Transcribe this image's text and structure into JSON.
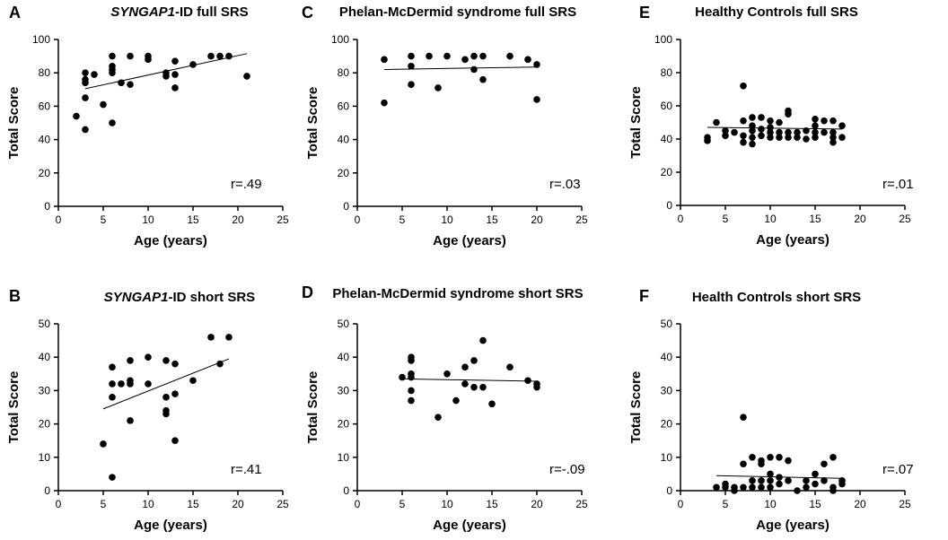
{
  "chart_data": [
    {
      "panel": "A",
      "type": "scatter",
      "title": "SYNGAP1-ID full SRS",
      "title_italic_prefix": "SYNGAP1",
      "title_rest": "-ID full SRS",
      "xlabel": "Age (years)",
      "ylabel": "Total Score",
      "xlim": [
        0,
        25
      ],
      "ylim": [
        0,
        100
      ],
      "xticks": [
        0,
        5,
        10,
        15,
        20,
        25
      ],
      "yticks": [
        0,
        20,
        40,
        60,
        80,
        100
      ],
      "points": [
        [
          2,
          54
        ],
        [
          3,
          46
        ],
        [
          3,
          65
        ],
        [
          3,
          74
        ],
        [
          3,
          76
        ],
        [
          3,
          80
        ],
        [
          4,
          79
        ],
        [
          5,
          61
        ],
        [
          6,
          50
        ],
        [
          6,
          80
        ],
        [
          6,
          82
        ],
        [
          6,
          84
        ],
        [
          6,
          90
        ],
        [
          7,
          74
        ],
        [
          8,
          73
        ],
        [
          8,
          90
        ],
        [
          10,
          88
        ],
        [
          10,
          90
        ],
        [
          12,
          78
        ],
        [
          12,
          80
        ],
        [
          13,
          71
        ],
        [
          13,
          79
        ],
        [
          13,
          87
        ],
        [
          15,
          85
        ],
        [
          17,
          90
        ],
        [
          18,
          90
        ],
        [
          19,
          90
        ],
        [
          21,
          78
        ]
      ],
      "trend": [
        [
          3,
          70.5
        ],
        [
          21,
          91.5
        ]
      ],
      "r_text": "r=.49"
    },
    {
      "panel": "B",
      "type": "scatter",
      "title": "SYNGAP1-ID short SRS",
      "title_italic_prefix": "SYNGAP1",
      "title_rest": "-ID short SRS",
      "xlabel": "Age (years)",
      "ylabel": "Total Score",
      "xlim": [
        0,
        25
      ],
      "ylim": [
        0,
        50
      ],
      "xticks": [
        0,
        5,
        10,
        15,
        20,
        25
      ],
      "yticks": [
        0,
        10,
        20,
        30,
        40,
        50
      ],
      "points": [
        [
          5,
          14
        ],
        [
          6,
          4
        ],
        [
          6,
          28
        ],
        [
          6,
          32
        ],
        [
          6,
          37
        ],
        [
          7,
          32
        ],
        [
          8,
          21
        ],
        [
          8,
          32
        ],
        [
          8,
          33
        ],
        [
          8,
          39
        ],
        [
          10,
          32
        ],
        [
          10,
          40
        ],
        [
          12,
          23
        ],
        [
          12,
          24
        ],
        [
          12,
          28
        ],
        [
          12,
          39
        ],
        [
          13,
          15
        ],
        [
          13,
          29
        ],
        [
          13,
          38
        ],
        [
          15,
          33
        ],
        [
          17,
          46
        ],
        [
          18,
          38
        ],
        [
          19,
          46
        ]
      ],
      "trend": [
        [
          5,
          24.5
        ],
        [
          19,
          39.5
        ]
      ],
      "r_text": "r=.41"
    },
    {
      "panel": "C",
      "type": "scatter",
      "title": "Phelan-McDermid syndrome full SRS",
      "xlabel": "Age (years)",
      "ylabel": "Total Score",
      "xlim": [
        0,
        25
      ],
      "ylim": [
        0,
        100
      ],
      "xticks": [
        0,
        5,
        10,
        15,
        20,
        25
      ],
      "yticks": [
        0,
        20,
        40,
        60,
        80,
        100
      ],
      "points": [
        [
          3,
          62
        ],
        [
          3,
          88
        ],
        [
          6,
          73
        ],
        [
          6,
          84
        ],
        [
          6,
          90
        ],
        [
          8,
          90
        ],
        [
          9,
          71
        ],
        [
          10,
          90
        ],
        [
          12,
          88
        ],
        [
          13,
          82
        ],
        [
          13,
          90
        ],
        [
          14,
          76
        ],
        [
          14,
          90
        ],
        [
          17,
          90
        ],
        [
          19,
          88
        ],
        [
          20,
          64
        ],
        [
          20,
          85
        ]
      ],
      "trend": [
        [
          3,
          82
        ],
        [
          20,
          83.5
        ]
      ],
      "r_text": "r=.03"
    },
    {
      "panel": "D",
      "type": "scatter",
      "title": "Phelan-McDermid syndrome short SRS",
      "xlabel": "Age (years)",
      "ylabel": "Total Score",
      "xlim": [
        0,
        25
      ],
      "ylim": [
        0,
        50
      ],
      "xticks": [
        0,
        5,
        10,
        15,
        20,
        25
      ],
      "yticks": [
        0,
        10,
        20,
        30,
        40,
        50
      ],
      "points": [
        [
          5,
          34
        ],
        [
          6,
          27
        ],
        [
          6,
          30
        ],
        [
          6,
          34
        ],
        [
          6,
          35
        ],
        [
          6,
          39
        ],
        [
          6,
          40
        ],
        [
          9,
          22
        ],
        [
          10,
          35
        ],
        [
          11,
          27
        ],
        [
          12,
          32
        ],
        [
          12,
          37
        ],
        [
          13,
          31
        ],
        [
          13,
          39
        ],
        [
          14,
          31
        ],
        [
          14,
          45
        ],
        [
          15,
          26
        ],
        [
          17,
          37
        ],
        [
          19,
          33
        ],
        [
          20,
          31
        ],
        [
          20,
          32
        ]
      ],
      "trend": [
        [
          5,
          33.5
        ],
        [
          20,
          32.8
        ]
      ],
      "r_text": "r=-.09"
    },
    {
      "panel": "E",
      "type": "scatter",
      "title": "Healthy Controls full SRS",
      "xlabel": "Age (years)",
      "ylabel": "Total Score",
      "xlim": [
        0,
        25
      ],
      "ylim": [
        0,
        100
      ],
      "xticks": [
        0,
        5,
        10,
        15,
        20,
        25
      ],
      "yticks": [
        0,
        20,
        40,
        60,
        80,
        100
      ],
      "points": [
        [
          3,
          39
        ],
        [
          3,
          41
        ],
        [
          4,
          50
        ],
        [
          5,
          42
        ],
        [
          5,
          45
        ],
        [
          6,
          44
        ],
        [
          7,
          38
        ],
        [
          7,
          42
        ],
        [
          7,
          51
        ],
        [
          7,
          72
        ],
        [
          8,
          37
        ],
        [
          8,
          41
        ],
        [
          8,
          45
        ],
        [
          8,
          48
        ],
        [
          8,
          53
        ],
        [
          9,
          42
        ],
        [
          9,
          46
        ],
        [
          9,
          53
        ],
        [
          10,
          41
        ],
        [
          10,
          44
        ],
        [
          10,
          47
        ],
        [
          10,
          51
        ],
        [
          11,
          41
        ],
        [
          11,
          44
        ],
        [
          11,
          50
        ],
        [
          12,
          41
        ],
        [
          12,
          44
        ],
        [
          12,
          55
        ],
        [
          12,
          57
        ],
        [
          13,
          41
        ],
        [
          13,
          44
        ],
        [
          14,
          40
        ],
        [
          14,
          45
        ],
        [
          15,
          41
        ],
        [
          15,
          44
        ],
        [
          15,
          48
        ],
        [
          15,
          52
        ],
        [
          16,
          44
        ],
        [
          16,
          51
        ],
        [
          17,
          38
        ],
        [
          17,
          41
        ],
        [
          17,
          44
        ],
        [
          17,
          51
        ],
        [
          18,
          41
        ],
        [
          18,
          48
        ]
      ],
      "trend": [
        [
          3,
          47
        ],
        [
          18,
          46
        ]
      ],
      "r_text": "r=.01"
    },
    {
      "panel": "F",
      "type": "scatter",
      "title": "Health Controls short SRS",
      "xlabel": "Age (years)",
      "ylabel": "Total Score",
      "xlim": [
        0,
        25
      ],
      "ylim": [
        0,
        50
      ],
      "xticks": [
        0,
        5,
        10,
        15,
        20,
        25
      ],
      "yticks": [
        0,
        10,
        20,
        30,
        40,
        50
      ],
      "points": [
        [
          4,
          1
        ],
        [
          5,
          2
        ],
        [
          5,
          1
        ],
        [
          6,
          1
        ],
        [
          6,
          0
        ],
        [
          7,
          22
        ],
        [
          7,
          1
        ],
        [
          7,
          8
        ],
        [
          8,
          1
        ],
        [
          8,
          3
        ],
        [
          8,
          10
        ],
        [
          9,
          3
        ],
        [
          9,
          1
        ],
        [
          9,
          9
        ],
        [
          9,
          8
        ],
        [
          10,
          1
        ],
        [
          10,
          3
        ],
        [
          10,
          5
        ],
        [
          10,
          10
        ],
        [
          11,
          2
        ],
        [
          11,
          4
        ],
        [
          11,
          10
        ],
        [
          12,
          3
        ],
        [
          12,
          9
        ],
        [
          13,
          0
        ],
        [
          14,
          1
        ],
        [
          14,
          3
        ],
        [
          15,
          2
        ],
        [
          15,
          5
        ],
        [
          16,
          3
        ],
        [
          16,
          8
        ],
        [
          17,
          0
        ],
        [
          17,
          1
        ],
        [
          17,
          10
        ],
        [
          18,
          2
        ],
        [
          18,
          3
        ]
      ],
      "trend": [
        [
          4,
          4.5
        ],
        [
          18,
          3.7
        ]
      ],
      "r_text": "r=.07"
    }
  ]
}
